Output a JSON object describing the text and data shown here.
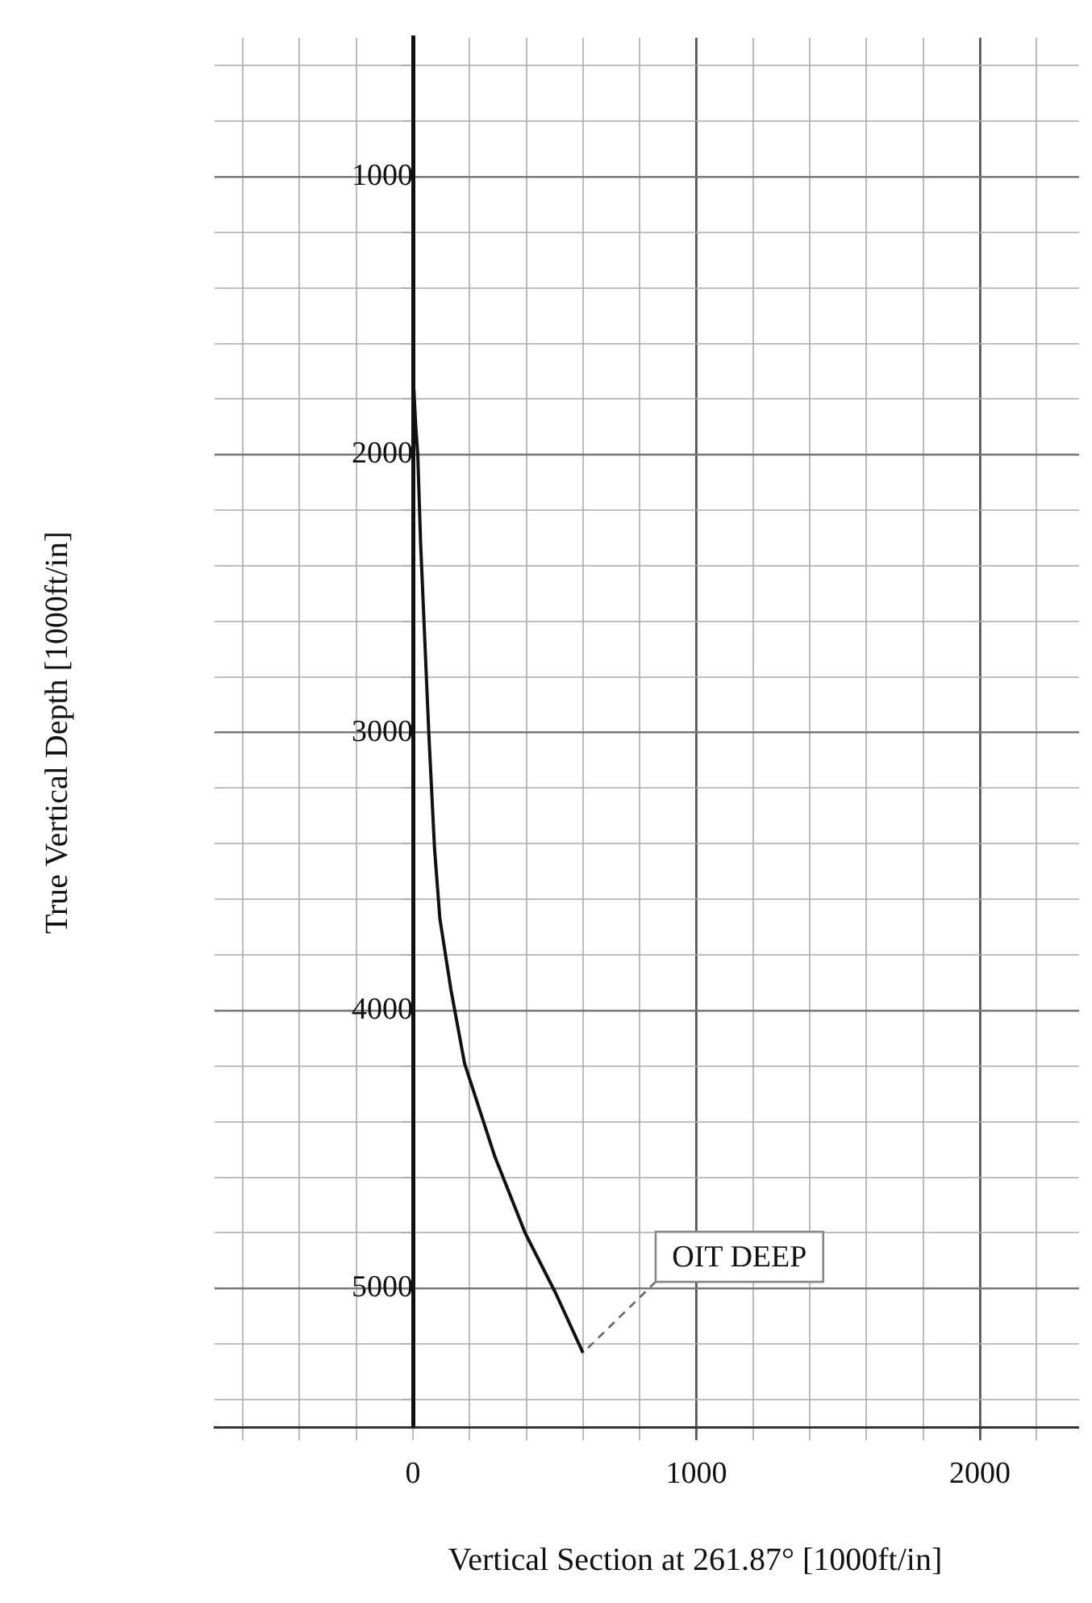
{
  "chart_data": {
    "type": "line",
    "xlabel": "Vertical Section at 261.87° [1000ft/in]",
    "ylabel": "True Vertical Depth [1000ft/in]",
    "series": [
      {
        "color": "#111111",
        "x": [
          0,
          0,
          10,
          17,
          27,
          56,
          76,
          95,
          134,
          182,
          289,
          396,
          503,
          600
        ],
        "values": [
          500,
          1700,
          1900,
          2000,
          2318,
          3004,
          3415,
          3670,
          3925,
          4190,
          4526,
          4801,
          5016,
          5232
        ]
      }
    ],
    "xlim": [
      -700,
      2350
    ],
    "ylim": [
      5500,
      500
    ],
    "xticks": [
      {
        "value": -600,
        "label": null
      },
      {
        "value": -400,
        "label": null
      },
      {
        "value": -200,
        "label": null
      },
      0,
      {
        "value": 200,
        "label": null
      },
      {
        "value": 400,
        "label": null
      },
      {
        "value": 600,
        "label": null
      },
      {
        "value": 800,
        "label": null
      },
      1000,
      {
        "value": 1200,
        "label": null
      },
      {
        "value": 1400,
        "label": null
      },
      {
        "value": 1600,
        "label": null
      },
      {
        "value": 1800,
        "label": null
      },
      2000,
      {
        "value": 2200,
        "label": null
      }
    ],
    "yticks": [
      {
        "value": 600,
        "label": null
      },
      {
        "value": 800,
        "label": null
      },
      1000,
      {
        "value": 1200,
        "label": null
      },
      {
        "value": 1400,
        "label": null
      },
      {
        "value": 1600,
        "label": null
      },
      {
        "value": 1800,
        "label": null
      },
      2000,
      {
        "value": 2200,
        "label": null
      },
      {
        "value": 2400,
        "label": null
      },
      {
        "value": 2600,
        "label": null
      },
      {
        "value": 2800,
        "label": null
      },
      3000,
      {
        "value": 3200,
        "label": null
      },
      {
        "value": 3400,
        "label": null
      },
      {
        "value": 3600,
        "label": null
      },
      {
        "value": 3800,
        "label": null
      },
      4000,
      {
        "value": 4200,
        "label": null
      },
      {
        "value": 4400,
        "label": null
      },
      {
        "value": 4600,
        "label": null
      },
      {
        "value": 4800,
        "label": null
      },
      5000,
      {
        "value": 5200,
        "label": null
      },
      {
        "value": 5400,
        "label": null
      }
    ],
    "grid": true,
    "marker": "none",
    "line_style": "solid",
    "annotations": [
      {
        "text": "OIT DEEP",
        "x": 600,
        "y": 5232
      }
    ]
  }
}
